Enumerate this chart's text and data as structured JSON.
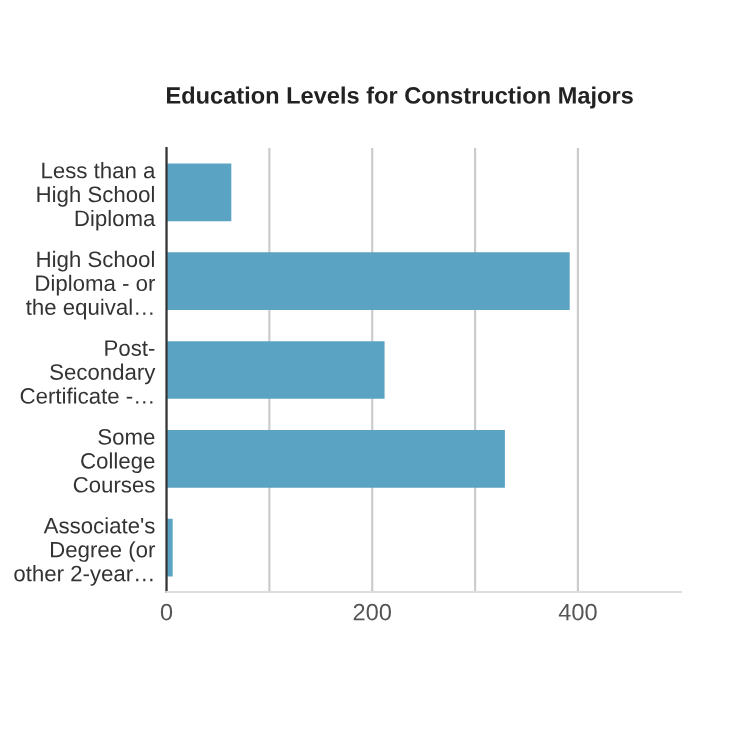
{
  "chart_data": {
    "type": "bar",
    "orientation": "horizontal",
    "title": "Education Levels for Construction Majors",
    "categories": [
      "Less than a\nHigh School\nDiploma",
      "High School\nDiploma - or\nthe equival…",
      "Post-\nSecondary\nCertificate -…",
      "Some\nCollege\nCourses",
      "Associate's\nDegree (or\nother 2-year…"
    ],
    "values": [
      63,
      392,
      212,
      329,
      6
    ],
    "color": "#5ba3c2",
    "xlim": [
      0,
      500
    ],
    "xticks": [
      0,
      {
        "value": 100,
        "label": null
      },
      200,
      {
        "value": 300,
        "label": null
      },
      400
    ],
    "grid": "x"
  }
}
